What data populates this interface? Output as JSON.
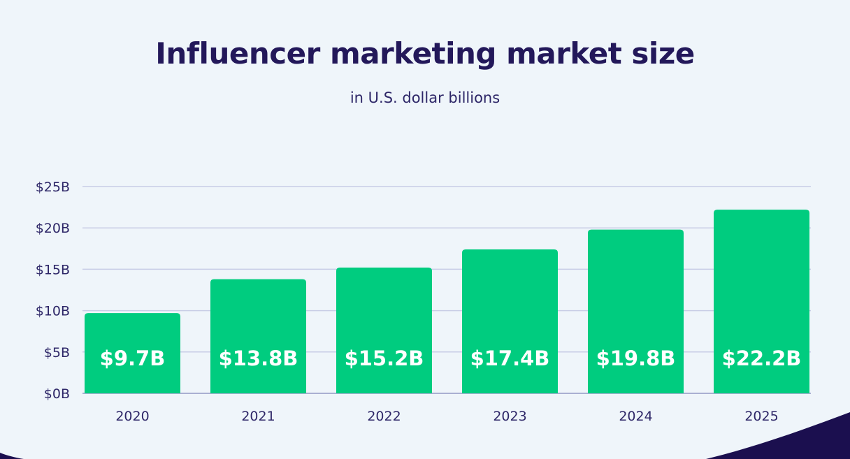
{
  "chart_data": {
    "type": "bar",
    "title": "Influencer marketing market size",
    "subtitle": "in U.S. dollar billions",
    "categories": [
      "2020",
      "2021",
      "2022",
      "2023",
      "2024",
      "2025"
    ],
    "values": [
      9.7,
      13.8,
      15.2,
      17.4,
      19.8,
      22.2
    ],
    "data_labels": [
      "$9.7B",
      "$13.8B",
      "$15.2B",
      "$17.4B",
      "$19.8B",
      "$22.2B"
    ],
    "yticks": [
      0,
      5,
      10,
      15,
      20,
      25
    ],
    "ytick_labels": [
      "$0B",
      "$5B",
      "$10B",
      "$15B",
      "$20B",
      "$25B"
    ],
    "ylim": [
      0,
      25
    ],
    "xlabel": "",
    "ylabel": "",
    "grid": true,
    "legend": "none"
  },
  "colors": {
    "bar": "#00cc7f",
    "background": "#eff5fa",
    "gridline": "#c8cde6",
    "text": "#2e2768",
    "title": "#23185a",
    "corner_accent": "#1b0f4f"
  }
}
